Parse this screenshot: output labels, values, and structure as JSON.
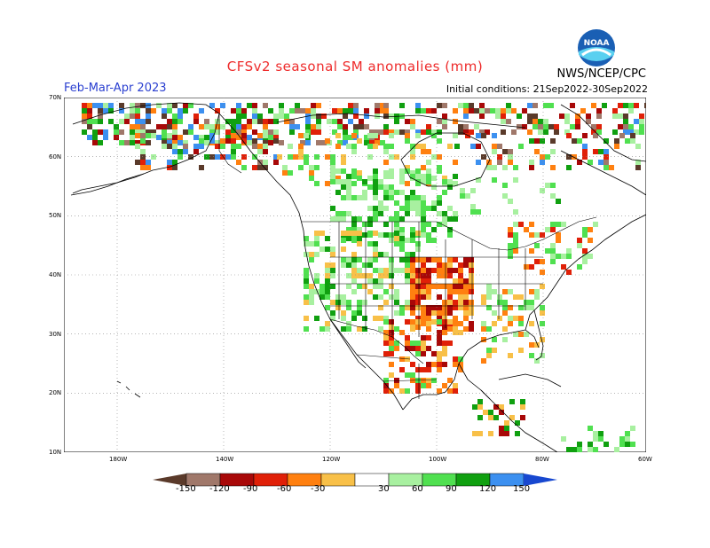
{
  "header": {
    "title": "CFSv2 seasonal SM anomalies (mm)",
    "season": "Feb-Mar-Apr 2023",
    "org": "NWS/NCEP/CPC",
    "initial_conditions": "Initial conditions: 21Sep2022-30Sep2022",
    "logo_text": "NOAA"
  },
  "map": {
    "lat_labels": [
      "70N",
      "60N",
      "50N",
      "40N",
      "30N",
      "20N",
      "10N"
    ],
    "lon_labels": [
      "180W",
      "140W",
      "120W",
      "100W",
      "80W",
      "60W"
    ]
  },
  "legend": {
    "labels": [
      "-150",
      "-120",
      "-90",
      "-60",
      "-30",
      "30",
      "60",
      "90",
      "120",
      "150"
    ],
    "colors": {
      "lt150": "#5a3a2a",
      "m150_m120": "#a0786a",
      "m120_m90": "#a80808",
      "m90_m60": "#e02008",
      "m60_m30": "#ff8010",
      "m30_0": "#f8c048",
      "neutral": "#ffffff",
      "p30_60": "#a8f0a0",
      "p60_90": "#50e050",
      "p90_120": "#10a010",
      "p120_150": "#3c90f0",
      "gt150": "#1848d0"
    }
  }
}
